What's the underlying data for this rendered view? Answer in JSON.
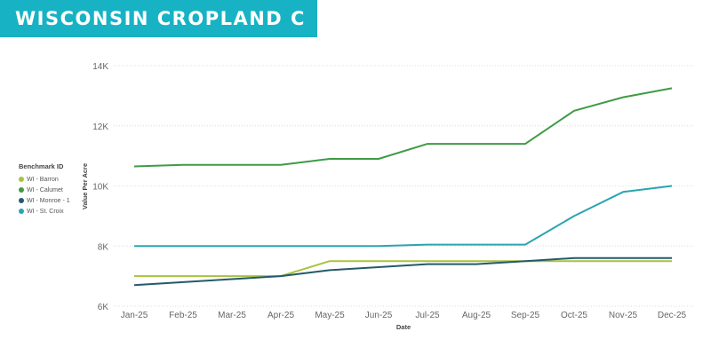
{
  "title": "WISCONSIN CROPLAND C",
  "legend": {
    "title": "Benchmark ID",
    "items": [
      {
        "label": "WI - Barron",
        "color": "#a9c23f"
      },
      {
        "label": "WI - Calumet",
        "color": "#3f9b45"
      },
      {
        "label": "WI - Monroe - 1",
        "color": "#235a6b"
      },
      {
        "label": "WI - St. Croix",
        "color": "#2aa5b0"
      }
    ]
  },
  "chart_data": {
    "type": "line",
    "xlabel": "Date",
    "ylabel": "Value Per Acre",
    "categories": [
      "Jan-25",
      "Feb-25",
      "Mar-25",
      "Apr-25",
      "May-25",
      "Jun-25",
      "Jul-25",
      "Aug-25",
      "Sep-25",
      "Oct-25",
      "Nov-25",
      "Dec-25"
    ],
    "ylim": [
      6000,
      14000
    ],
    "yticks": [
      {
        "value": 6000,
        "label": "6K"
      },
      {
        "value": 8000,
        "label": "8K"
      },
      {
        "value": 10000,
        "label": "10K"
      },
      {
        "value": 12000,
        "label": "12K"
      },
      {
        "value": 14000,
        "label": "14K"
      }
    ],
    "grid": true,
    "legend_position": "left",
    "series": [
      {
        "name": "WI - Barron",
        "color": "#a9c23f",
        "values": [
          7000,
          7000,
          7000,
          7000,
          7500,
          7500,
          7500,
          7500,
          7500,
          7500,
          7500,
          7500
        ]
      },
      {
        "name": "WI - Calumet",
        "color": "#3f9b45",
        "values": [
          10650,
          10700,
          10700,
          10700,
          10900,
          10900,
          11400,
          11400,
          11400,
          12500,
          12950,
          13250
        ]
      },
      {
        "name": "WI - Monroe - 1",
        "color": "#235a6b",
        "values": [
          6700,
          6800,
          6900,
          7000,
          7200,
          7300,
          7400,
          7400,
          7500,
          7600,
          7600,
          7600
        ]
      },
      {
        "name": "WI - St. Croix",
        "color": "#2aa5b0",
        "values": [
          8000,
          8000,
          8000,
          8000,
          8000,
          8000,
          8050,
          8050,
          8050,
          9000,
          9800,
          10000
        ]
      }
    ]
  }
}
